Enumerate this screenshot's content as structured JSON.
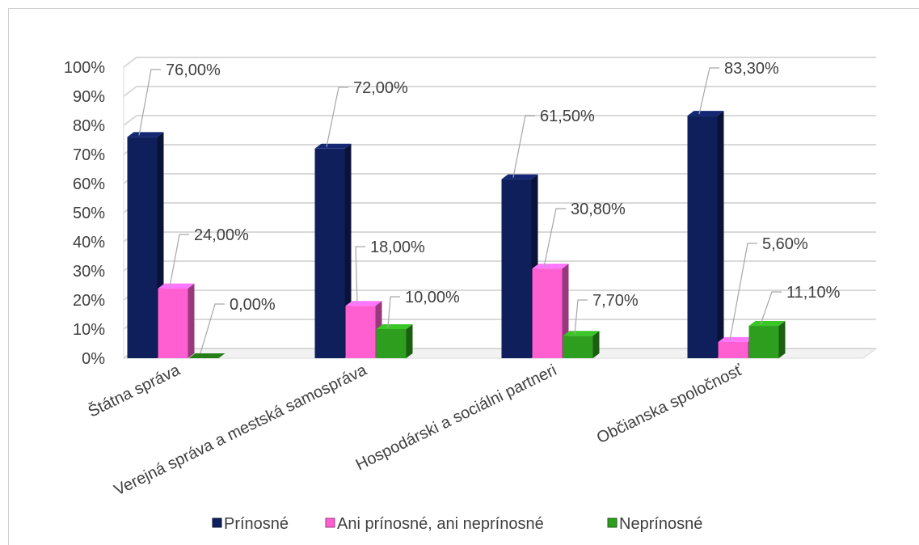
{
  "chart_data": {
    "type": "bar",
    "categories": [
      "Štátna správa",
      "Verejná správa a mestská samospráva",
      "Hospodárski a sociálni partneri",
      "Občianska spoločnosť"
    ],
    "series": [
      {
        "name": "Prínosné",
        "values": [
          76.0,
          72.0,
          61.5,
          83.3
        ],
        "labels": [
          "76,00%",
          "72,00%",
          "61,50%",
          "83,30%"
        ],
        "color": "#0f1f5c"
      },
      {
        "name": "Ani prínosné, ani neprínosné",
        "values": [
          24.0,
          18.0,
          30.8,
          5.6
        ],
        "labels": [
          "24,00%",
          "18,00%",
          "30,80%",
          "5,60%"
        ],
        "color": "#ff5fd0"
      },
      {
        "name": "Neprínosné",
        "values": [
          0.0,
          10.0,
          7.7,
          11.1
        ],
        "labels": [
          "0,00%",
          "10,00%",
          "7,70%",
          "11,10%"
        ],
        "color": "#2e9e1e"
      }
    ],
    "y_ticks": [
      "0%",
      "10%",
      "20%",
      "30%",
      "40%",
      "50%",
      "60%",
      "70%",
      "80%",
      "90%",
      "100%"
    ],
    "ylim": [
      0,
      100
    ],
    "grid": true,
    "legend": "bottom"
  }
}
